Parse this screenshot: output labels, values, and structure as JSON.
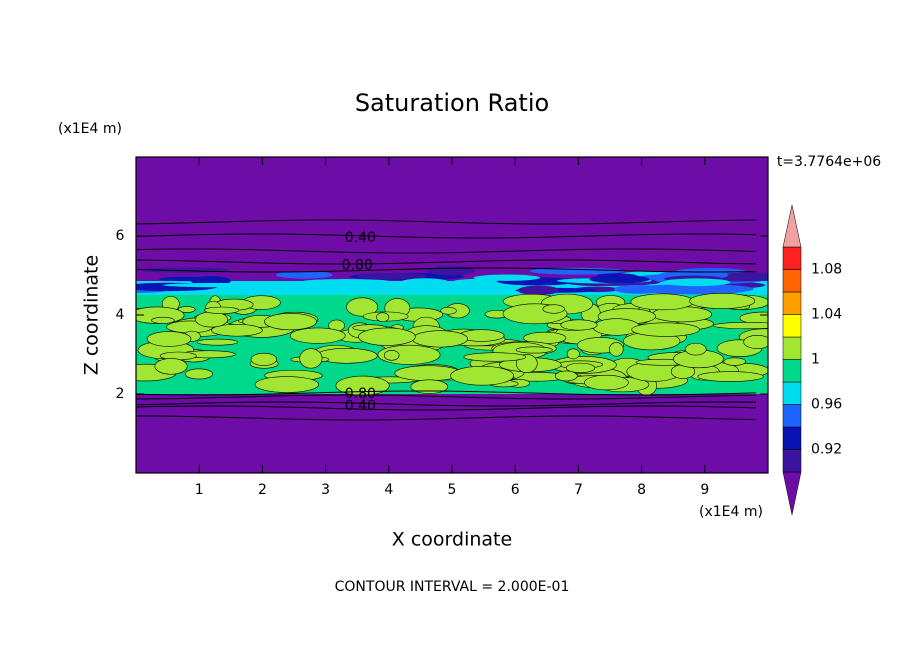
{
  "chart_data": {
    "type": "contour",
    "title": "Saturation Ratio",
    "xlabel": "X coordinate",
    "ylabel": "Z coordinate",
    "x_unit": "(x1E4 m)",
    "y_unit": "(x1E4 m)",
    "time_label": "t=3.7764e+06",
    "footer": "CONTOUR INTERVAL = 2.000E-01",
    "xlim": [
      0,
      10
    ],
    "xticks": [
      1,
      2,
      3,
      4,
      5,
      6,
      7,
      8,
      9
    ],
    "ylim": [
      0,
      8
    ],
    "yticks": [
      2,
      4,
      6
    ],
    "contour_labels": [
      {
        "value": 0.4,
        "label": "0.40",
        "x": 3.55,
        "y": 5.95
      },
      {
        "value": 0.8,
        "label": "0.80",
        "x": 3.5,
        "y": 5.25
      },
      {
        "value": 0.8,
        "label": "0.80",
        "x": 3.55,
        "y": 2.0
      },
      {
        "value": 0.4,
        "label": "0.40",
        "x": 3.55,
        "y": 1.7
      }
    ],
    "colorbar": {
      "levels": [
        0.9,
        0.92,
        0.94,
        0.96,
        0.98,
        1,
        1.02,
        1.04,
        1.06,
        1.08,
        1.1
      ],
      "labels": [
        0.92,
        0.96,
        1,
        1.04,
        1.08
      ],
      "colors": [
        "#6e0ca8",
        "#3c14a0",
        "#0a14b4",
        "#1e64ff",
        "#00dcf0",
        "#00d88c",
        "#a0e632",
        "#ffff00",
        "#ffa000",
        "#ff6400",
        "#ff2020",
        "#f0a0a0"
      ]
    }
  }
}
